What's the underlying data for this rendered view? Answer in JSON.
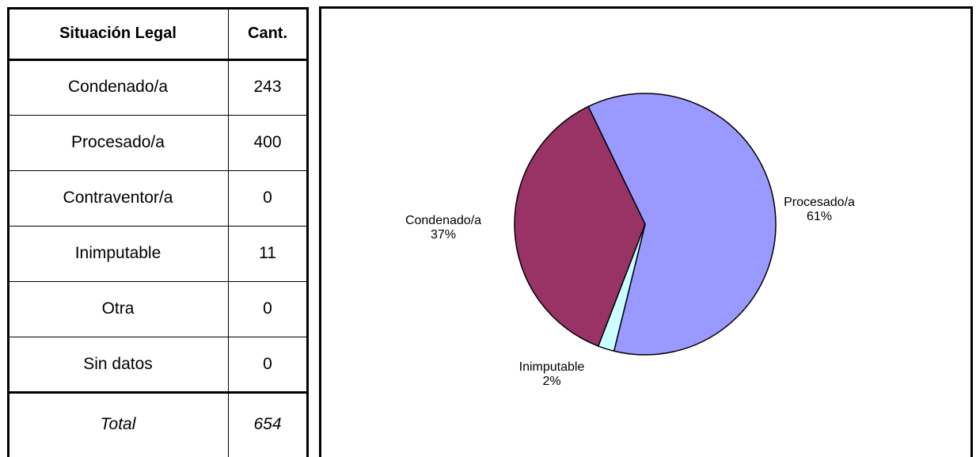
{
  "table": {
    "headers": [
      "Situación Legal",
      "Cant."
    ],
    "rows": [
      [
        "Condenado/a",
        243
      ],
      [
        "Procesado/a",
        400
      ],
      [
        "Contraventor/a",
        0
      ],
      [
        "Inimputable",
        11
      ],
      [
        "Otra",
        0
      ],
      [
        "Sin datos",
        0
      ]
    ],
    "total": [
      "Total",
      654
    ]
  },
  "chart_data": {
    "type": "pie",
    "categories": [
      "Condenado/a",
      "Procesado/a",
      "Inimputable"
    ],
    "values": [
      37,
      61,
      2
    ],
    "value_labels": [
      "37%",
      "61%",
      "2%"
    ],
    "colors": [
      "#993366",
      "#9999ff",
      "#ccffff"
    ]
  }
}
